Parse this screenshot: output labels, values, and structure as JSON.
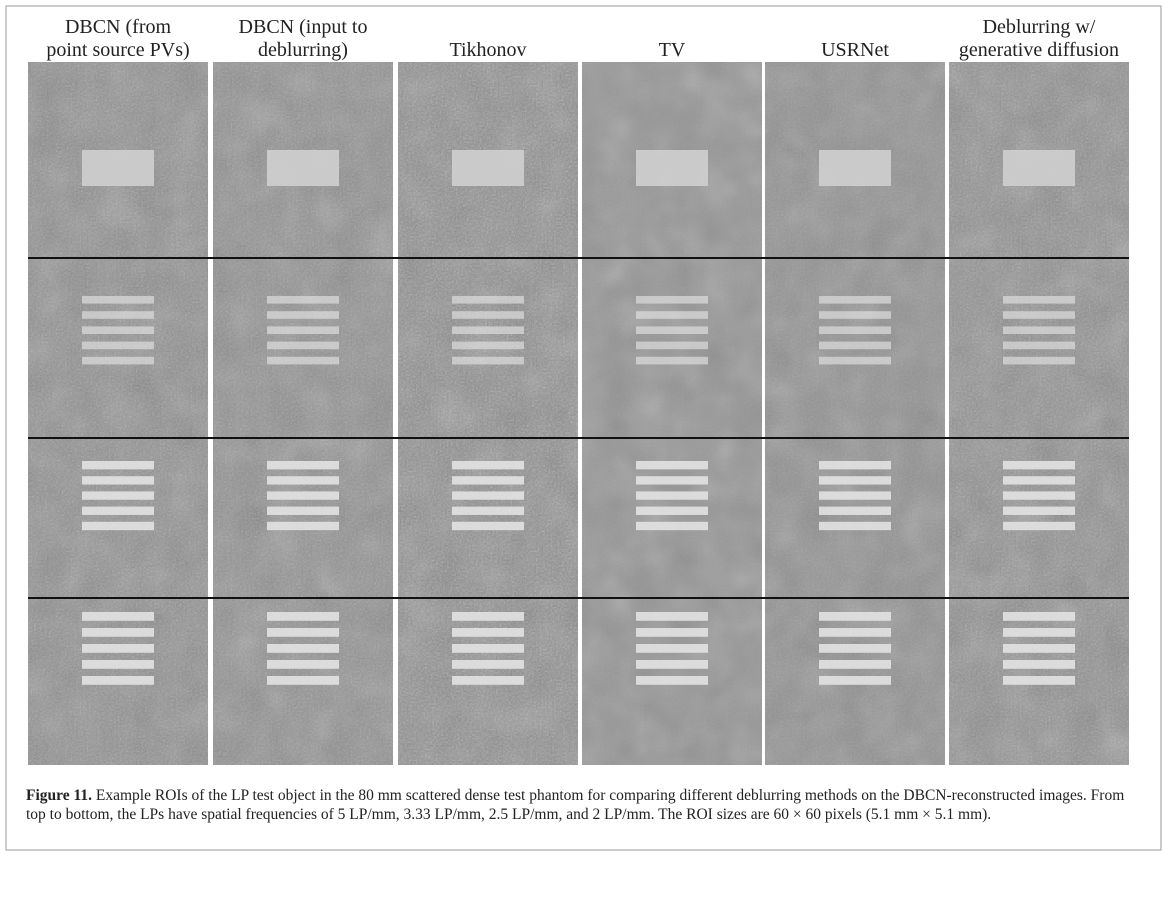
{
  "headers": [
    [
      "DBCN (from",
      "point source PVs)"
    ],
    [
      "DBCN (input to",
      "deblurring)"
    ],
    [
      "Tikhonov"
    ],
    [
      "TV"
    ],
    [
      "USRNet"
    ],
    [
      "Deblurring w/",
      "generative diffusion"
    ]
  ],
  "caption": {
    "label": "Figure 11.",
    "text": "Example ROIs of the LP test object in the 80 mm scattered dense test phantom for comparing different deblurring methods on the DBCN-reconstructed images. From top to bottom, the LPs have spatial frequencies of 5 LP/mm, 3.33 LP/mm, 2.5 LP/mm, and 2 LP/mm. The ROI sizes are 60 × 60 pixels (5.1 mm × 5.1 mm)."
  }
}
